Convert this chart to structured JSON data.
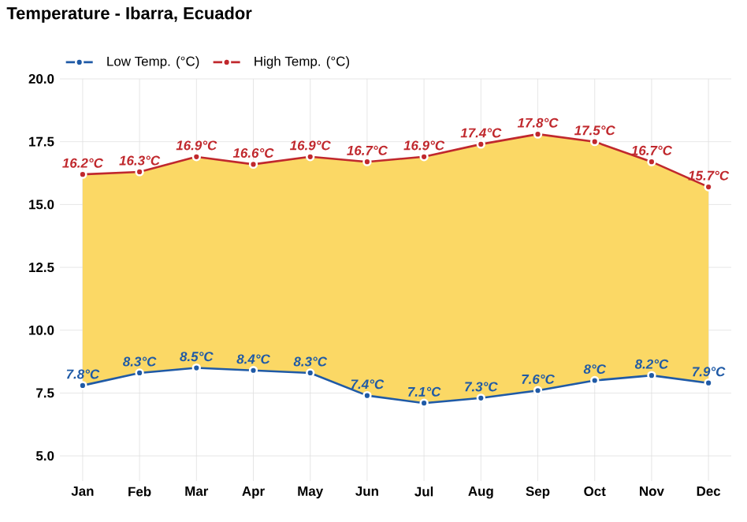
{
  "chart_data": {
    "type": "line",
    "title": "Temperature - Ibarra, Ecuador",
    "categories": [
      "Jan",
      "Feb",
      "Mar",
      "Apr",
      "May",
      "Jun",
      "Jul",
      "Aug",
      "Sep",
      "Oct",
      "Nov",
      "Dec"
    ],
    "series": [
      {
        "name": "Low Temp. (°C)",
        "color": "#1f5aa6",
        "values": [
          7.8,
          8.3,
          8.5,
          8.4,
          8.3,
          7.4,
          7.1,
          7.3,
          7.6,
          8,
          8.2,
          7.9
        ],
        "value_labels": [
          "7.8°C",
          "8.3°C",
          "8.5°C",
          "8.4°C",
          "8.3°C",
          "7.4°C",
          "7.1°C",
          "7.3°C",
          "7.6°C",
          "8°C",
          "8.2°C",
          "7.9°C"
        ]
      },
      {
        "name": "High Temp. (°C)",
        "type": "area",
        "color": "#c0282d",
        "values": [
          16.2,
          16.3,
          16.9,
          16.6,
          16.9,
          16.7,
          16.9,
          17.4,
          17.8,
          17.5,
          16.7,
          15.7
        ],
        "value_labels": [
          "16.2°C",
          "16.3°C",
          "16.9°C",
          "16.6°C",
          "16.9°C",
          "16.7°C",
          "16.9°C",
          "17.4°C",
          "17.8°C",
          "17.5°C",
          "16.7°C",
          "15.7°C"
        ]
      }
    ],
    "ylim": [
      4,
      20
    ],
    "yticks": [
      {
        "value": 5,
        "label": "5.0"
      },
      {
        "value": 7.5,
        "label": "7.5"
      },
      {
        "value": 10,
        "label": "10.0"
      },
      {
        "value": 12.5,
        "label": "12.5"
      },
      {
        "value": 15,
        "label": "15.0"
      },
      {
        "value": 17.5,
        "label": "17.5"
      },
      {
        "value": 20,
        "label": "20.0"
      }
    ],
    "grid": true,
    "legend": "top left",
    "marker": "circle",
    "line_style": "solid"
  }
}
